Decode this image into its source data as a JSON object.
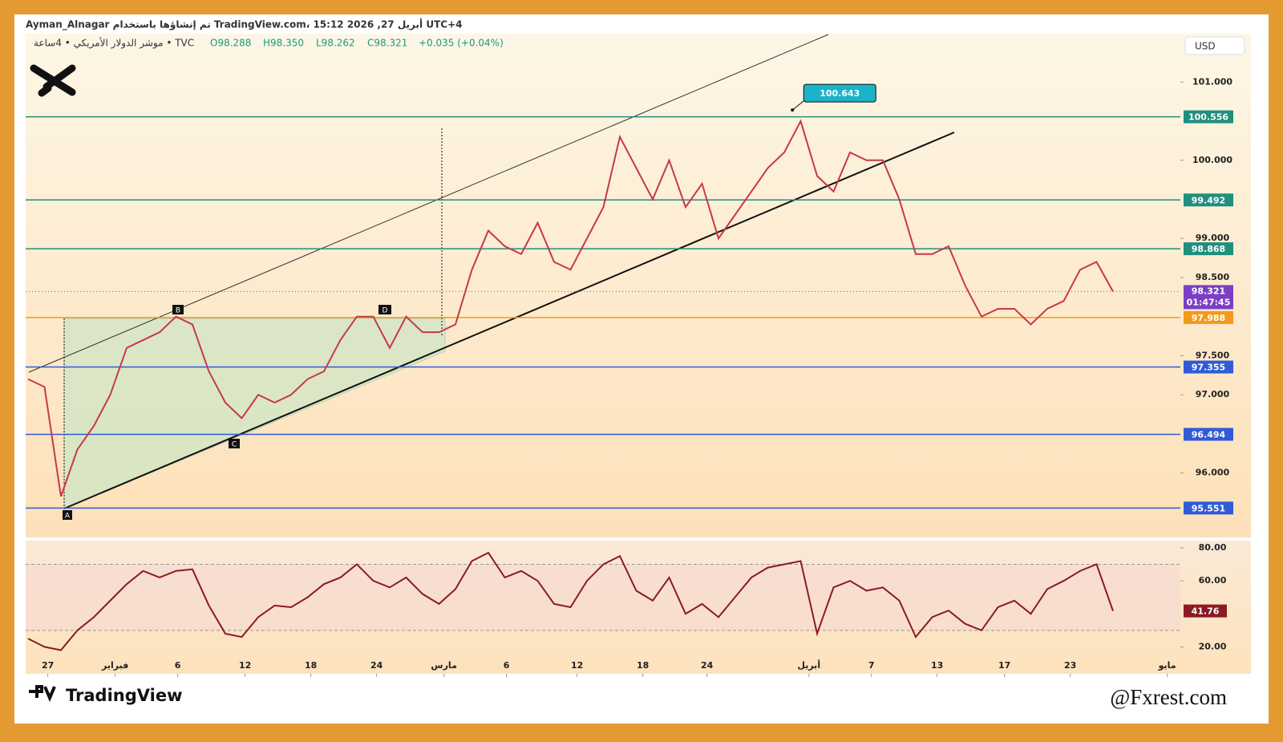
{
  "header": {
    "line1": "Ayman_Alnagar تم إنشاؤها باستخدام TradingView.com، 15:12 2026 ,27 أبريل UTC+4",
    "symbol": "موشر الدولار الأمريكي • 4ساعة • TVC",
    "open": "O98.288",
    "high": "H98.350",
    "low": "L98.262",
    "close": "C98.321",
    "change": "+0.035 (+0.04%)"
  },
  "currency": "USD",
  "chart_data": [
    {
      "type": "line",
      "color": "#c8374a",
      "x": [
        0,
        1,
        2,
        3,
        4,
        5,
        6,
        7,
        8,
        9,
        10,
        11,
        12,
        13,
        14,
        15,
        16,
        17,
        18,
        19,
        20,
        21,
        22,
        23,
        24,
        25,
        26,
        27,
        28,
        29,
        30,
        31,
        32,
        33,
        34,
        35,
        36,
        37,
        38,
        39,
        40,
        41,
        42,
        43,
        44,
        45,
        46,
        47,
        48,
        49,
        50,
        51,
        52,
        53,
        54,
        55,
        56,
        57,
        58,
        59,
        60,
        61,
        62,
        63,
        64,
        65,
        66
      ],
      "values": [
        97.2,
        97.1,
        95.7,
        96.3,
        96.6,
        97.0,
        97.6,
        97.7,
        97.8,
        98.0,
        97.9,
        97.3,
        96.9,
        96.7,
        97.0,
        96.9,
        97.0,
        97.2,
        97.3,
        97.7,
        98.0,
        98.0,
        97.6,
        98.0,
        97.8,
        97.8,
        97.9,
        98.6,
        99.1,
        98.9,
        98.8,
        99.2,
        98.7,
        98.6,
        99.0,
        99.4,
        100.3,
        99.9,
        99.5,
        100.0,
        99.4,
        99.7,
        99.0,
        99.3,
        99.6,
        99.9,
        100.1,
        100.5,
        99.8,
        99.6,
        100.1,
        100.0,
        100.0,
        99.5,
        98.8,
        98.8,
        98.9,
        98.4,
        98.0,
        98.1,
        98.1,
        97.9,
        98.1,
        98.2,
        98.6,
        98.7,
        98.321
      ],
      "xlim": [
        0,
        70
      ],
      "xticks": [
        {
          "value": 1.2,
          "label": "27"
        },
        {
          "value": 5.3,
          "label": "فبراير"
        },
        {
          "value": 9.1,
          "label": "6"
        },
        {
          "value": 13.2,
          "label": "12"
        },
        {
          "value": 17.2,
          "label": "18"
        },
        {
          "value": 21.2,
          "label": "24"
        },
        {
          "value": 25.3,
          "label": "مارس"
        },
        {
          "value": 29.1,
          "label": "6"
        },
        {
          "value": 33.4,
          "label": "12"
        },
        {
          "value": 37.4,
          "label": "18"
        },
        {
          "value": 41.3,
          "label": "24"
        },
        {
          "value": 47.5,
          "label": "أبريل"
        },
        {
          "value": 51.3,
          "label": "7"
        },
        {
          "value": 55.3,
          "label": "13"
        },
        {
          "value": 59.4,
          "label": "17"
        },
        {
          "value": 63.4,
          "label": "23"
        },
        {
          "value": 69.3,
          "label": "مايو"
        }
      ],
      "ylim": [
        95.175,
        101.619
      ],
      "yticks": [
        {
          "value": 101,
          "label": "101.000"
        },
        {
          "value": 100,
          "label": "100.000"
        },
        {
          "value": 99,
          "label": "99.000"
        },
        {
          "value": 98.5,
          "label": "98.500"
        },
        {
          "value": 97.5,
          "label": "97.500"
        },
        {
          "value": 97,
          "label": "97.000"
        },
        {
          "value": 96,
          "label": "96.000"
        }
      ],
      "levels": [
        {
          "value": 100.556,
          "color": "#1f8f7e"
        },
        {
          "value": 99.492,
          "color": "#1f8f7e"
        },
        {
          "value": 98.868,
          "color": "#1f8f7e"
        },
        {
          "value": 97.988,
          "color": "#f29a1c"
        },
        {
          "value": 97.355,
          "color": "#2f5bd8"
        },
        {
          "value": 96.494,
          "color": "#2f5bd8"
        },
        {
          "value": 95.551,
          "color": "#2f5bd8"
        }
      ],
      "last": {
        "value": 98.321,
        "countdown": "01:47:45",
        "color": "#7b3fc4"
      },
      "callout": {
        "value": 100.643,
        "x": 46.5,
        "color": "#1bb3c9"
      },
      "pattern_labels": [
        "A",
        "B",
        "C",
        "D"
      ]
    },
    {
      "type": "line",
      "color": "#8b1a24",
      "values": [
        25,
        20,
        18,
        30,
        38,
        48,
        58,
        66,
        62,
        66,
        67,
        45,
        28,
        26,
        38,
        45,
        44,
        50,
        58,
        62,
        70,
        60,
        56,
        62,
        52,
        46,
        55,
        72,
        77,
        62,
        66,
        60,
        46,
        44,
        60,
        70,
        75,
        54,
        48,
        62,
        40,
        46,
        38,
        50,
        62,
        68,
        70,
        72,
        28,
        56,
        60,
        54,
        56,
        48,
        26,
        38,
        42,
        34,
        30,
        44,
        48,
        40,
        55,
        60,
        66,
        70,
        41.76
      ],
      "ylim": [
        3.68,
        84.32
      ],
      "yticks": [
        {
          "value": 80,
          "label": "80.00"
        },
        {
          "value": 60,
          "label": "60.00"
        },
        {
          "value": 20,
          "label": "20.00"
        }
      ],
      "bands": [
        70,
        30
      ],
      "value_labels": {
        "66": "41.76"
      }
    }
  ],
  "footer": {
    "brand": "TradingView",
    "credit": "@Fxrest.com"
  }
}
